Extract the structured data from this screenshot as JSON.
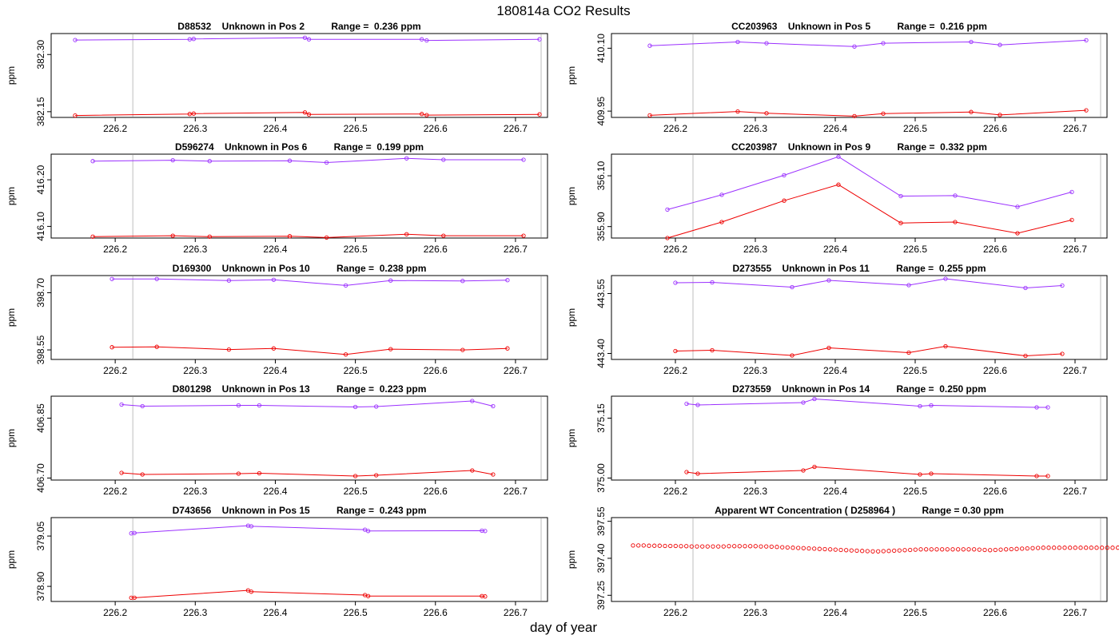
{
  "figure": {
    "title": "180814a  CO2 Results",
    "xlabel": "day of year",
    "colors": {
      "series_a": "#9b30ff",
      "series_b": "#ee0000",
      "vline": "#bebebe",
      "axis": "#000000"
    }
  },
  "chart_data": [
    {
      "type": "line",
      "title": "D88532    Unknown in Pos 2          Range =  0.236 ppm",
      "xlabel": "",
      "ylabel": "ppm",
      "xlim": [
        226.12,
        226.74
      ],
      "ylim": [
        382.135,
        382.355
      ],
      "xticks": [
        "226.2",
        "226.3",
        "226.4",
        "226.5",
        "226.6",
        "226.7"
      ],
      "yticks": [
        "382.15",
        "382.30"
      ],
      "vlines": [
        226.222,
        226.732
      ],
      "series": [
        {
          "name": "upper",
          "color": "#9b30ff",
          "x": [
            226.15,
            226.293,
            226.298,
            226.437,
            226.442,
            226.583,
            226.589,
            226.73
          ],
          "y": [
            382.338,
            382.34,
            382.341,
            382.344,
            382.34,
            382.34,
            382.337,
            382.34
          ]
        },
        {
          "name": "lower",
          "color": "#ee0000",
          "x": [
            226.15,
            226.293,
            226.298,
            226.437,
            226.442,
            226.583,
            226.589,
            226.73
          ],
          "y": [
            382.14,
            382.144,
            382.145,
            382.148,
            382.143,
            382.144,
            382.141,
            382.143
          ]
        }
      ]
    },
    {
      "type": "line",
      "title": "CC203963    Unknown in Pos 5          Range =  0.216 ppm",
      "xlabel": "",
      "ylabel": "ppm",
      "xlim": [
        226.12,
        226.74
      ],
      "ylim": [
        409.935,
        410.135
      ],
      "xticks": [
        "226.2",
        "226.3",
        "226.4",
        "226.5",
        "226.6",
        "226.7"
      ],
      "yticks": [
        "409.95",
        "410.10"
      ],
      "vlines": [
        226.222,
        226.732
      ],
      "series": [
        {
          "name": "upper",
          "color": "#9b30ff",
          "x": [
            226.168,
            226.278,
            226.314,
            226.424,
            226.46,
            226.57,
            226.606,
            226.714
          ],
          "y": [
            410.106,
            410.115,
            410.112,
            410.104,
            410.112,
            410.115,
            410.108,
            410.119
          ]
        },
        {
          "name": "lower",
          "color": "#ee0000",
          "x": [
            226.168,
            226.278,
            226.314,
            226.424,
            226.46,
            226.57,
            226.606,
            226.714
          ],
          "y": [
            409.94,
            409.949,
            409.945,
            409.938,
            409.944,
            409.948,
            409.941,
            409.952
          ]
        }
      ]
    },
    {
      "type": "line",
      "title": "D596274    Unknown in Pos 6          Range =  0.199 ppm",
      "xlabel": "",
      "ylabel": "ppm",
      "xlim": [
        226.12,
        226.74
      ],
      "ylim": [
        416.075,
        416.255
      ],
      "xticks": [
        "226.2",
        "226.3",
        "226.4",
        "226.5",
        "226.6",
        "226.7"
      ],
      "yticks": [
        "416.10",
        "416.20"
      ],
      "vlines": [
        226.222,
        226.732
      ],
      "series": [
        {
          "name": "upper",
          "color": "#9b30ff",
          "x": [
            226.172,
            226.272,
            226.318,
            226.418,
            226.464,
            226.564,
            226.61,
            226.71
          ],
          "y": [
            416.24,
            416.242,
            416.24,
            416.241,
            416.237,
            416.246,
            416.243,
            416.243
          ]
        },
        {
          "name": "lower",
          "color": "#ee0000",
          "x": [
            226.172,
            226.272,
            226.318,
            226.418,
            226.464,
            226.564,
            226.61,
            226.71
          ],
          "y": [
            416.078,
            416.08,
            416.078,
            416.079,
            416.076,
            416.083,
            416.08,
            416.08
          ]
        }
      ]
    },
    {
      "type": "line",
      "title": "CC203987    Unknown in Pos 9          Range =  0.332 ppm",
      "xlabel": "",
      "ylabel": "ppm",
      "xlim": [
        226.12,
        226.74
      ],
      "ylim": [
        355.855,
        356.185
      ],
      "xticks": [
        "226.2",
        "226.3",
        "226.4",
        "226.5",
        "226.6",
        "226.7"
      ],
      "yticks": [
        "355.90",
        "356.10"
      ],
      "vlines": [
        226.222,
        226.732
      ],
      "series": [
        {
          "name": "upper",
          "color": "#9b30ff",
          "x": [
            226.19,
            226.258,
            226.336,
            226.404,
            226.482,
            226.55,
            226.628,
            226.696
          ],
          "y": [
            355.967,
            356.025,
            356.102,
            356.175,
            356.02,
            356.022,
            355.978,
            356.036
          ]
        },
        {
          "name": "lower",
          "color": "#ee0000",
          "x": [
            226.19,
            226.258,
            226.336,
            226.404,
            226.482,
            226.55,
            226.628,
            226.696
          ],
          "y": [
            355.855,
            355.918,
            356.002,
            356.065,
            355.914,
            355.918,
            355.874,
            355.926
          ]
        }
      ]
    },
    {
      "type": "line",
      "title": "D169300    Unknown in Pos 10          Range =  0.238 ppm",
      "xlabel": "",
      "ylabel": "ppm",
      "xlim": [
        226.12,
        226.74
      ],
      "ylim": [
        398.525,
        398.745
      ],
      "xticks": [
        "226.2",
        "226.3",
        "226.4",
        "226.5",
        "226.6",
        "226.7"
      ],
      "yticks": [
        "398.55",
        "398.70"
      ],
      "vlines": [
        226.222,
        226.732
      ],
      "series": [
        {
          "name": "upper",
          "color": "#9b30ff",
          "x": [
            226.196,
            226.252,
            226.342,
            226.398,
            226.488,
            226.544,
            226.634,
            226.69
          ],
          "y": [
            398.736,
            398.736,
            398.732,
            398.734,
            398.719,
            398.732,
            398.731,
            398.733
          ]
        },
        {
          "name": "lower",
          "color": "#ee0000",
          "x": [
            226.196,
            226.252,
            226.342,
            226.398,
            226.488,
            226.544,
            226.634,
            226.69
          ],
          "y": [
            398.557,
            398.558,
            398.551,
            398.554,
            398.538,
            398.552,
            398.55,
            398.554
          ]
        }
      ]
    },
    {
      "type": "line",
      "title": "D273555    Unknown in Pos 11          Range =  0.255 ppm",
      "xlabel": "",
      "ylabel": "ppm",
      "xlim": [
        226.12,
        226.74
      ],
      "ylim": [
        443.385,
        443.595
      ],
      "xticks": [
        "226.2",
        "226.3",
        "226.4",
        "226.5",
        "226.6",
        "226.7"
      ],
      "yticks": [
        "443.40",
        "443.55"
      ],
      "vlines": [
        226.222,
        226.732
      ],
      "series": [
        {
          "name": "upper",
          "color": "#9b30ff",
          "x": [
            226.2,
            226.246,
            226.346,
            226.392,
            226.492,
            226.538,
            226.638,
            226.684
          ],
          "y": [
            443.577,
            443.578,
            443.566,
            443.583,
            443.571,
            443.587,
            443.564,
            443.57
          ]
        },
        {
          "name": "lower",
          "color": "#ee0000",
          "x": [
            226.2,
            226.246,
            226.346,
            226.392,
            226.492,
            226.538,
            226.638,
            226.684
          ],
          "y": [
            443.406,
            443.408,
            443.395,
            443.414,
            443.402,
            443.418,
            443.394,
            443.399
          ]
        }
      ]
    },
    {
      "type": "line",
      "title": "D801298    Unknown in Pos 13          Range =  0.223 ppm",
      "xlabel": "",
      "ylabel": "ppm",
      "xlim": [
        226.12,
        226.74
      ],
      "ylim": [
        406.695,
        406.905
      ],
      "xticks": [
        "226.2",
        "226.3",
        "226.4",
        "226.5",
        "226.6",
        "226.7"
      ],
      "yticks": [
        "406.70",
        "406.85"
      ],
      "vlines": [
        226.222,
        226.732
      ],
      "series": [
        {
          "name": "upper",
          "color": "#9b30ff",
          "x": [
            226.208,
            226.234,
            226.354,
            226.38,
            226.5,
            226.526,
            226.646,
            226.672
          ],
          "y": [
            406.884,
            406.88,
            406.882,
            406.882,
            406.878,
            406.879,
            406.893,
            406.88
          ]
        },
        {
          "name": "lower",
          "color": "#ee0000",
          "x": [
            226.208,
            226.234,
            226.354,
            226.38,
            226.5,
            226.526,
            226.646,
            226.672
          ],
          "y": [
            406.713,
            406.709,
            406.711,
            406.712,
            406.705,
            406.707,
            406.719,
            406.709
          ]
        }
      ]
    },
    {
      "type": "line",
      "title": "D273559    Unknown in Pos 14          Range =  0.250 ppm",
      "xlabel": "",
      "ylabel": "ppm",
      "xlim": [
        226.12,
        226.74
      ],
      "ylim": [
        374.995,
        375.205
      ],
      "xticks": [
        "226.2",
        "226.3",
        "226.4",
        "226.5",
        "226.6",
        "226.7"
      ],
      "yticks": [
        "375.00",
        "375.15"
      ],
      "vlines": [
        226.222,
        226.732
      ],
      "series": [
        {
          "name": "upper",
          "color": "#9b30ff",
          "x": [
            226.214,
            226.228,
            226.36,
            226.374,
            226.506,
            226.52,
            226.652,
            226.666
          ],
          "y": [
            375.186,
            375.183,
            375.189,
            375.198,
            375.18,
            375.182,
            375.177,
            375.177
          ]
        },
        {
          "name": "lower",
          "color": "#ee0000",
          "x": [
            226.214,
            226.228,
            226.36,
            226.374,
            226.506,
            226.52,
            226.652,
            226.666
          ],
          "y": [
            375.015,
            375.011,
            375.019,
            375.028,
            375.009,
            375.011,
            375.005,
            375.005
          ]
        }
      ]
    },
    {
      "type": "line",
      "title": "D743656    Unknown in Pos 15          Range =  0.243 ppm",
      "xlabel": "",
      "ylabel": "ppm",
      "xlim": [
        226.12,
        226.74
      ],
      "ylim": [
        378.855,
        379.105
      ],
      "xticks": [
        "226.2",
        "226.3",
        "226.4",
        "226.5",
        "226.6",
        "226.7"
      ],
      "yticks": [
        "378.90",
        "379.05"
      ],
      "vlines": [
        226.222,
        226.732
      ],
      "series": [
        {
          "name": "upper",
          "color": "#9b30ff",
          "x": [
            226.22,
            226.224,
            226.366,
            226.37,
            226.512,
            226.516,
            226.658,
            226.662
          ],
          "y": [
            379.058,
            379.059,
            379.081,
            379.079,
            379.069,
            379.065,
            379.066,
            379.065
          ]
        },
        {
          "name": "lower",
          "color": "#ee0000",
          "x": [
            226.22,
            226.224,
            226.366,
            226.37,
            226.512,
            226.516,
            226.658,
            226.662
          ],
          "y": [
            378.866,
            378.866,
            378.888,
            378.884,
            378.874,
            378.871,
            378.871,
            378.87
          ]
        }
      ]
    },
    {
      "type": "scatter",
      "title": "Apparent WT Concentration ( D258964 )          Range = 0.30 ppm",
      "xlabel": "",
      "ylabel": "ppm",
      "xlim": [
        226.12,
        226.74
      ],
      "ylim": [
        397.225,
        397.565
      ],
      "xticks": [
        "226.2",
        "226.3",
        "226.4",
        "226.5",
        "226.6",
        "226.7"
      ],
      "yticks": [
        "397.25",
        "397.40",
        "397.55"
      ],
      "vlines": [
        226.222,
        226.732
      ],
      "x_start": 226.147,
      "x_step": 0.0066667,
      "series": [
        {
          "name": "WT",
          "color": "#ee0000",
          "y": [
            397.452,
            397.452,
            397.452,
            397.451,
            397.451,
            397.451,
            397.45,
            397.45,
            397.45,
            397.449,
            397.449,
            397.448,
            397.448,
            397.448,
            397.448,
            397.448,
            397.448,
            397.448,
            397.449,
            397.449,
            397.449,
            397.449,
            397.449,
            397.449,
            397.448,
            397.448,
            397.447,
            397.446,
            397.445,
            397.444,
            397.443,
            397.442,
            397.441,
            397.44,
            397.439,
            397.438,
            397.437,
            397.436,
            397.435,
            397.434,
            397.433,
            397.432,
            397.431,
            397.43,
            397.429,
            397.428,
            397.428,
            397.429,
            397.43,
            397.431,
            397.432,
            397.433,
            397.434,
            397.435,
            397.436,
            397.436,
            397.436,
            397.436,
            397.436,
            397.436,
            397.436,
            397.436,
            397.436,
            397.436,
            397.436,
            397.435,
            397.434,
            397.433,
            397.434,
            397.435,
            397.436,
            397.437,
            397.438,
            397.439,
            397.44,
            397.441,
            397.442,
            397.443,
            397.443,
            397.443,
            397.443,
            397.443,
            397.443,
            397.443,
            397.443,
            397.443,
            397.443,
            397.443,
            397.443,
            397.443,
            397.443,
            397.443,
            397.443,
            397.443
          ]
        }
      ]
    }
  ]
}
